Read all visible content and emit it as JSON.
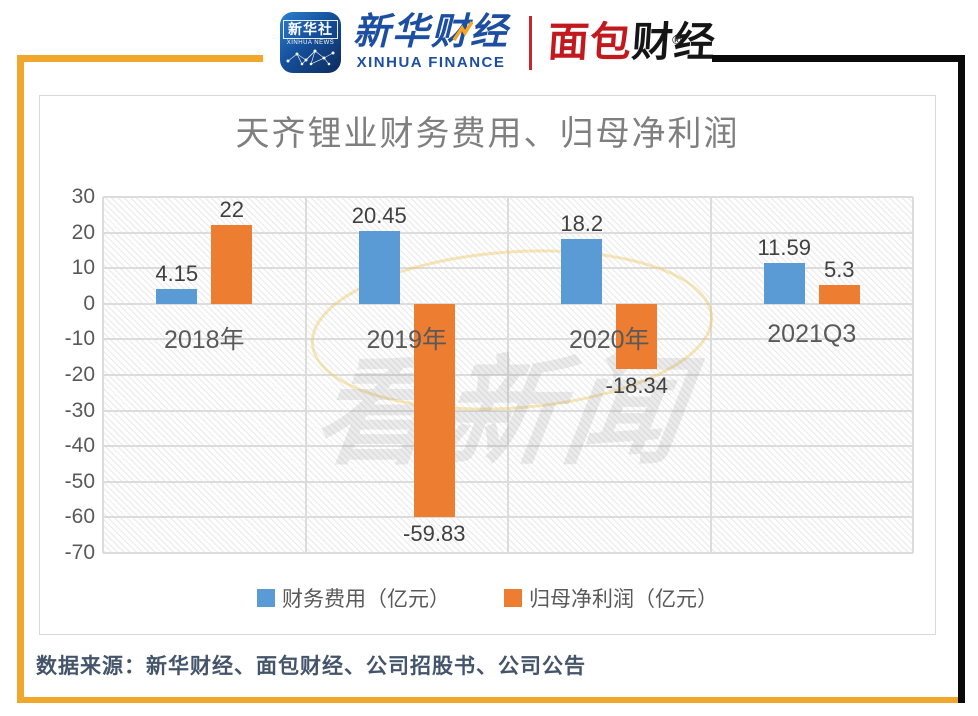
{
  "header": {
    "xinhua_news_badge": {
      "cn": "新华社",
      "en": "XINHUA NEWS"
    },
    "xinhua_finance": {
      "cn": "新华财经",
      "en": "XINHUA FINANCE"
    },
    "mianbao": {
      "part_red": "面包",
      "part_black": "财经",
      "reg": "®"
    }
  },
  "chart_data": {
    "type": "bar",
    "title": "天齐锂业财务费用、归母净利润",
    "categories": [
      "2018年",
      "2019年",
      "2020年",
      "2021Q3"
    ],
    "series": [
      {
        "name": "财务费用（亿元）",
        "color": "#5B9BD5",
        "values": [
          4.15,
          20.45,
          18.2,
          11.59
        ],
        "labels": [
          "4.15",
          "20.45",
          "18.2",
          "11.59"
        ]
      },
      {
        "name": "归母净利润（亿元）",
        "color": "#ED7D31",
        "values": [
          22,
          -59.83,
          -18.34,
          5.3
        ],
        "labels": [
          "22",
          "-59.83",
          "-18.34",
          "5.3"
        ]
      }
    ],
    "y_ticks": [
      30,
      20,
      10,
      0,
      -10,
      -20,
      -30,
      -40,
      -50,
      -60,
      -70
    ],
    "ylim": [
      -70,
      30
    ],
    "grid": true,
    "legend_position": "bottom"
  },
  "watermark": {
    "text": "看新闻"
  },
  "source_text": "数据来源：新华财经、面包财经、公司招股书、公司公告",
  "colors": {
    "frame_gold": "#f0a72b",
    "frame_black": "#0a0a0a",
    "bar_blue": "#5B9BD5",
    "bar_orange": "#ED7D31",
    "title_gray": "#7f7f7f",
    "source_navy": "#44546a"
  }
}
